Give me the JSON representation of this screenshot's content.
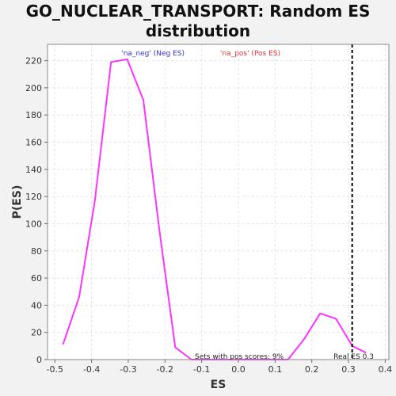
{
  "chart_data": {
    "type": "line",
    "title_lines": [
      "GO_NUCLEAR_TRANSPORT: Random ES",
      "distribution"
    ],
    "xlabel": "ES",
    "ylabel": "P(ES)",
    "xlim": [
      -0.52,
      0.41
    ],
    "ylim": [
      0,
      232
    ],
    "x_ticks": [
      -0.5,
      -0.4,
      -0.3,
      -0.2,
      -0.1,
      0.0,
      0.1,
      0.2,
      0.3,
      0.4
    ],
    "x_tick_labels": [
      "-0.5",
      "-0.4",
      "-0.3",
      "-0.2",
      "-0.1",
      "0.0",
      "0.1",
      "0.2",
      "0.3",
      "0.4"
    ],
    "y_ticks": [
      0,
      20,
      40,
      60,
      80,
      100,
      120,
      140,
      160,
      180,
      200,
      220
    ],
    "y_tick_labels": [
      "0",
      "20",
      "40",
      "60",
      "80",
      "100",
      "120",
      "140",
      "160",
      "180",
      "200",
      "220"
    ],
    "grid": true,
    "series": [
      {
        "color": "#ff33ff",
        "x": [
          -0.478,
          -0.434,
          -0.391,
          -0.347,
          -0.303,
          -0.259,
          -0.215,
          -0.172,
          -0.128,
          -0.084,
          -0.04,
          0.004,
          0.047,
          0.091,
          0.135,
          0.179,
          0.223,
          0.266,
          0.31,
          0.348
        ],
        "y": [
          11,
          46,
          117,
          219,
          221,
          191,
          95,
          9,
          0,
          0,
          0,
          0,
          0,
          0,
          0,
          15,
          34,
          30,
          10,
          5
        ]
      }
    ],
    "real_es": {
      "x": 0.31,
      "color": "#000000"
    },
    "legend": {
      "placement": "top-center",
      "entries": [
        {
          "text": "'na_neg' (Neg ES)",
          "color": "#3333cc"
        },
        {
          "text": "'na_pos' (Pos ES)",
          "color": "#e83333"
        }
      ]
    },
    "annotations": {
      "pos_scores": "Sets with pos scores: 9%",
      "real_es": "Real ES 0.3"
    }
  }
}
